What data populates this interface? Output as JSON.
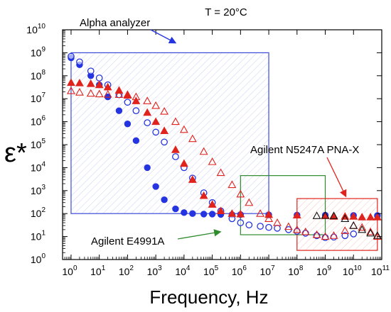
{
  "chart_data": {
    "type": "scatter",
    "title": "T = 20°C",
    "xlabel": "Frequency, Hz",
    "ylabel": "ε*",
    "x_scale": "log",
    "y_scale": "log",
    "xlim": [
      0.5,
      100000000000.0
    ],
    "ylim": [
      1,
      10000000000.0
    ],
    "grid": false,
    "x_tick_labels": [
      {
        "base": "10",
        "exp": "0"
      },
      {
        "base": "10",
        "exp": "1"
      },
      {
        "base": "10",
        "exp": "2"
      },
      {
        "base": "10",
        "exp": "3"
      },
      {
        "base": "10",
        "exp": "4"
      },
      {
        "base": "10",
        "exp": "5"
      },
      {
        "base": "10",
        "exp": "6"
      },
      {
        "base": "10",
        "exp": "7"
      },
      {
        "base": "10",
        "exp": "8"
      },
      {
        "base": "10",
        "exp": "9"
      },
      {
        "base": "10",
        "exp": "10"
      },
      {
        "base": "10",
        "exp": "11"
      }
    ],
    "y_tick_labels": [
      {
        "base": "10",
        "exp": "0"
      },
      {
        "base": "10",
        "exp": "1"
      },
      {
        "base": "10",
        "exp": "2"
      },
      {
        "base": "10",
        "exp": "3"
      },
      {
        "base": "10",
        "exp": "4"
      },
      {
        "base": "10",
        "exp": "5"
      },
      {
        "base": "10",
        "exp": "6"
      },
      {
        "base": "10",
        "exp": "7"
      },
      {
        "base": "10",
        "exp": "8"
      },
      {
        "base": "10",
        "exp": "9"
      },
      {
        "base": "10",
        "exp": "10"
      }
    ],
    "regions": [
      {
        "label": "Alpha analyzer",
        "x": [
          1,
          10000000.0
        ],
        "y": [
          100,
          1000000000.0
        ],
        "color": "#3b4bd8"
      },
      {
        "label": "Agilent E4991A",
        "x": [
          1000000.0,
          1000000000.0
        ],
        "y": [
          12,
          4500
        ],
        "color": "#2e8b2e"
      },
      {
        "label": "Agilent N5247A PNA-X",
        "x": [
          100000000.0,
          70000000000.0
        ],
        "y": [
          2.5,
          450
        ],
        "color": "#e0231c"
      }
    ],
    "series": [
      {
        "marker": "filled-circle",
        "color": "#2434e0",
        "x": [
          1,
          2,
          5,
          10,
          20,
          50,
          100,
          200,
          500,
          1000,
          2000,
          5000,
          10000,
          20000,
          50000,
          100000,
          200000,
          500000,
          1000000,
          10000000.0,
          100000000.0,
          1000000000.0,
          10000000000.0,
          70000000000.0
        ],
        "y": [
          600000000.0,
          300000000.0,
          100000000.0,
          40000000.0,
          12000000.0,
          3000000.0,
          800000.0,
          150000.0,
          10000.0,
          1500.0,
          400,
          160,
          110,
          100,
          95,
          95,
          92,
          90,
          90,
          88,
          86,
          85,
          83,
          82
        ]
      },
      {
        "marker": "open-circle",
        "color": "#2434e0",
        "x": [
          1,
          2,
          5,
          10,
          20,
          50,
          100,
          200,
          500,
          1000,
          2000,
          5000,
          10000,
          20000,
          50000,
          100000,
          200000,
          500000,
          1000000,
          2000000.0,
          5000000.0,
          10000000.0,
          20000000.0,
          50000000.0,
          100000000.0,
          200000000.0,
          500000000.0,
          1000000000.0,
          2000000000.0,
          5000000000.0,
          10000000000.0
        ],
        "y": [
          700000000.0,
          400000000.0,
          160000000.0,
          80000000.0,
          40000000.0,
          15000000.0,
          7000000.0,
          3000000.0,
          900000.0,
          350000.0,
          130000.0,
          30000.0,
          10000.0,
          3500.0,
          800.0,
          300.0,
          130.0,
          60,
          40,
          32,
          28,
          25,
          23,
          20,
          17,
          14,
          11,
          9,
          9.5,
          11,
          13
        ]
      },
      {
        "marker": "filled-triangle",
        "color": "#e0231c",
        "x": [
          1,
          2,
          5,
          10,
          20,
          50,
          100,
          200,
          500,
          1000,
          2000,
          5000,
          10000,
          20000,
          50000,
          100000,
          200000,
          500000,
          1000000,
          10000000.0,
          100000000.0,
          1000000000.0,
          2000000000.0,
          5000000000.0,
          10000000000.0,
          20000000000.0,
          40000000000.0,
          70000000000.0
        ],
        "y": [
          50000000.0,
          48000000.0,
          45000000.0,
          40000000.0,
          32000000.0,
          23000000.0,
          15000000.0,
          8000000.0,
          2500000.0,
          1000000.0,
          400000.0,
          60000.0,
          15000.0,
          3000.0,
          600.0,
          250.0,
          130.0,
          100,
          95,
          90,
          85,
          80,
          75,
          75,
          75,
          70,
          70,
          70
        ]
      },
      {
        "marker": "open-triangle",
        "color": "#e0231c",
        "x": [
          1,
          2,
          5,
          10,
          20,
          50,
          100,
          200,
          500,
          1000,
          2000,
          5000,
          10000,
          20000,
          50000,
          100000,
          200000,
          500000,
          1000000,
          2000000.0,
          5000000.0,
          10000000.0,
          20000000.0,
          50000000.0,
          100000000.0,
          200000000.0,
          500000000.0,
          1000000000.0,
          2000000000.0,
          5000000000.0,
          10000000000.0,
          20000000000.0,
          40000000000.0,
          70000000000.0
        ],
        "y": [
          22000000.0,
          19000000.0,
          17000000.0,
          16000000.0,
          15500000.0,
          15000000.0,
          14000000.0,
          12000000.0,
          8000000.0,
          5000000.0,
          2800000.0,
          1000000.0,
          450000.0,
          180000.0,
          50000.0,
          18000.0,
          6000.0,
          1800.0,
          700,
          300,
          100,
          60,
          40,
          27,
          20,
          16,
          12,
          10,
          11,
          18,
          30,
          25,
          16,
          10
        ]
      },
      {
        "marker": "open-triangle",
        "color": "#111111",
        "x": [
          500000000.0,
          1000000000.0,
          2000000000.0,
          5000000000.0,
          10000000000.0,
          20000000000.0,
          40000000000.0,
          70000000000.0
        ],
        "y": [
          80,
          82,
          80,
          60,
          30,
          20,
          14,
          11
        ]
      }
    ]
  }
}
